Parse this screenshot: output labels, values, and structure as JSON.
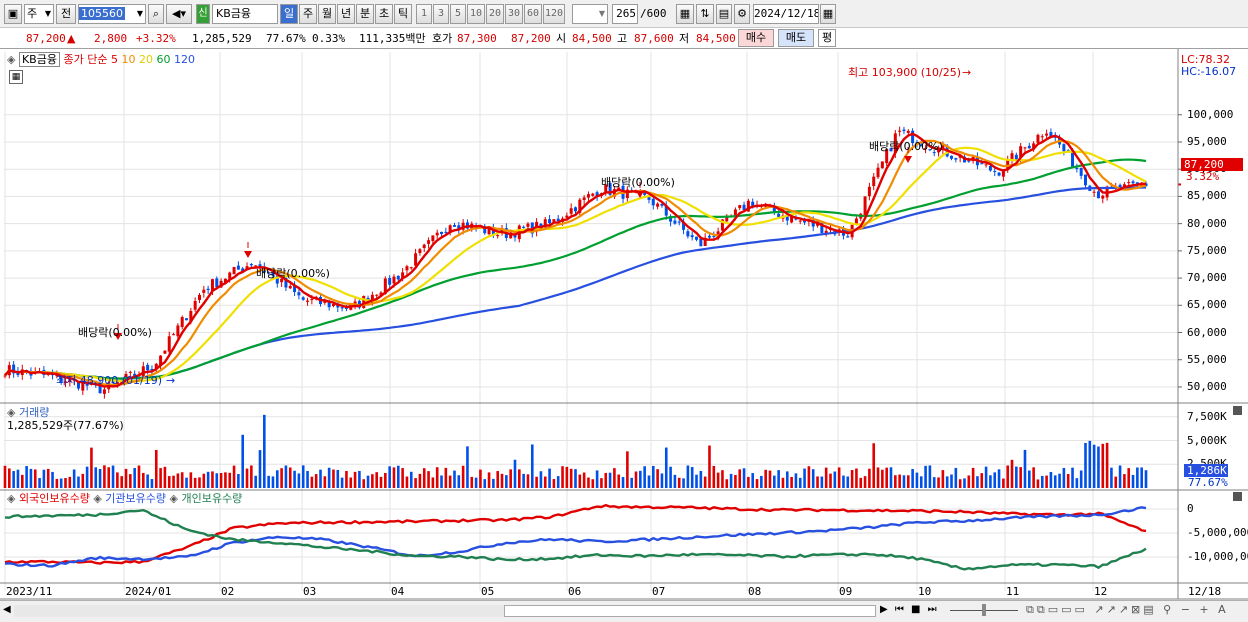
{
  "toolbar": {
    "mode": "주",
    "prefix": "전",
    "code": "105560",
    "badge": "신",
    "name": "KB금융",
    "periods": [
      "일",
      "주",
      "월",
      "년",
      "분",
      "초",
      "틱"
    ],
    "selected_period": "일",
    "ranges": [
      "1",
      "3",
      "5",
      "10",
      "20",
      "30",
      "60",
      "120"
    ],
    "count": "265",
    "count_max": "/600",
    "date": "2024/12/18"
  },
  "quote": {
    "price": "87,200",
    "change": "2,800",
    "change_pct": "+3.32%",
    "volume": "1,285,529",
    "vol_ratio": "77.67%",
    "turnover": "0.33%",
    "amount": "111,335백만",
    "bid_label": "호가",
    "ask": "87,300",
    "bid": "87,200",
    "open_label": "시",
    "open": "84,500",
    "high_label": "고",
    "high": "87,600",
    "low_label": "저",
    "low": "84,500",
    "buy_label": "매수",
    "sell_label": "매도",
    "eval_label": "평"
  },
  "price_panel": {
    "legend": {
      "name": "KB금융",
      "main": "종가 단순",
      "periods": [
        "5",
        "10",
        "20",
        "60",
        "120"
      ]
    },
    "lc": "LC:78.32",
    "hc": "HC:-16.07",
    "high_annot": "최고 103,900 (10/25)",
    "low_annot": "최저 48,900 (01/19)",
    "dividend_label": "배당락(0.00%)",
    "current_price": "87,200",
    "current_pct": "3.32%",
    "y_ticks": [
      "100,000",
      "95,000",
      "90,000",
      "85,000",
      "80,000",
      "75,000",
      "70,000",
      "65,000",
      "60,000",
      "55,000",
      "50,000"
    ]
  },
  "volume_panel": {
    "title": "거래량",
    "subtitle": "1,285,529주(77.67%)",
    "y_ticks": [
      "7,500K",
      "5,000K",
      "2,500K"
    ],
    "current": "1,286K",
    "current_pct": "77.67%"
  },
  "holding_panel": {
    "legend": [
      "외국인보유수량",
      "기관보유수량",
      "개인보유수량"
    ],
    "y_ticks": [
      "0",
      "-5,000,000",
      "-10,000,000"
    ]
  },
  "x_axis": {
    "labels": [
      "2023/11",
      "2024/01",
      "02",
      "03",
      "04",
      "05",
      "06",
      "07",
      "08",
      "09",
      "10",
      "11",
      "12"
    ],
    "right": "12/18"
  },
  "colors": {
    "up": "#e00000",
    "down": "#0050e8",
    "ma5": "#e00000",
    "ma10": "#f08c00",
    "ma20": "#f0e000",
    "ma60": "#00a030",
    "ma120": "#2850e0"
  },
  "chart_data": {
    "type": "candlestick",
    "title": "KB금융",
    "price_range": [
      46500,
      104000
    ],
    "x": [
      "2023/11",
      "2024/01",
      "02",
      "03",
      "04",
      "05",
      "06",
      "07",
      "08",
      "09",
      "10",
      "11",
      "12"
    ],
    "close_trend": [
      53200,
      51800,
      49500,
      54000,
      68000,
      73000,
      66000,
      64500,
      71000,
      80500,
      78000,
      80000,
      86500,
      84500,
      76000,
      84000,
      80500,
      78000,
      97000,
      93000,
      89500,
      97500,
      85500,
      87200
    ],
    "ma120_trend": [
      51500,
      51800,
      52800,
      54500,
      57500,
      61000,
      64500,
      68500,
      72500,
      75500,
      78000,
      80000,
      84200,
      86800
    ],
    "volume_max_k": 8000,
    "holdings": [
      {
        "name": "외국인보유수량",
        "start": -11000000,
        "end": -4700000
      },
      {
        "name": "기관보유수량",
        "start": -11500000,
        "end": 300000
      },
      {
        "name": "개인보유수량",
        "start": -1600000,
        "end": -8300000
      }
    ]
  }
}
